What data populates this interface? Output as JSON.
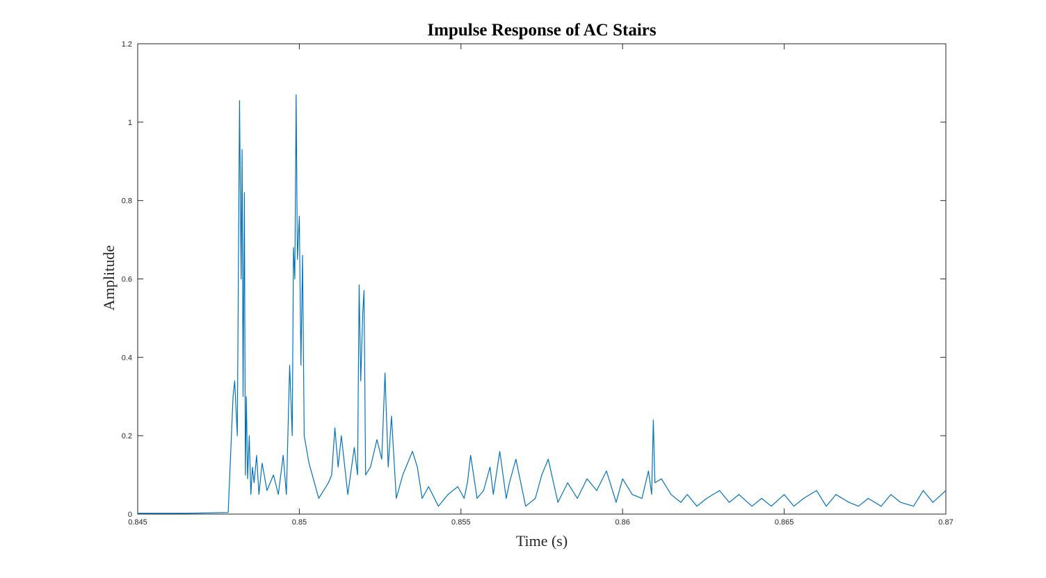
{
  "chart_data": {
    "type": "line",
    "title": "Impulse Response of AC Stairs",
    "xlabel": "Time (s)",
    "ylabel": "Amplitude",
    "xlim": [
      0.845,
      0.87
    ],
    "ylim": [
      0,
      1.2
    ],
    "xticks": [
      0.845,
      0.85,
      0.855,
      0.86,
      0.865,
      0.87
    ],
    "xtick_labels": [
      "0.845",
      "0.85",
      "0.855",
      "0.86",
      "0.865",
      "0.87"
    ],
    "yticks": [
      0,
      0.2,
      0.4,
      0.6,
      0.8,
      1.0,
      1.2
    ],
    "ytick_labels": [
      "0",
      "0.2",
      "0.4",
      "0.6",
      "0.8",
      "1",
      "1.2"
    ],
    "grid": false,
    "line_color": "#0072BD",
    "series": [
      {
        "x": [
          0.845,
          0.8465,
          0.8478,
          0.84795,
          0.848,
          0.84808,
          0.84815,
          0.8482,
          0.84823,
          0.84826,
          0.8483,
          0.84833,
          0.84836,
          0.8484,
          0.84845,
          0.8485,
          0.84855,
          0.8486,
          0.84868,
          0.84875,
          0.84885,
          0.849,
          0.8492,
          0.84935,
          0.8495,
          0.8496,
          0.8497,
          0.84978,
          0.84982,
          0.84986,
          0.8499,
          0.84994,
          0.85,
          0.85005,
          0.8501,
          0.85015,
          0.8503,
          0.8506,
          0.8509,
          0.851,
          0.8511,
          0.8512,
          0.8513,
          0.8515,
          0.8517,
          0.8518,
          0.85185,
          0.8519,
          0.85196,
          0.852,
          0.85205,
          0.8522,
          0.8524,
          0.85255,
          0.85265,
          0.85275,
          0.85285,
          0.853,
          0.8532,
          0.8535,
          0.85365,
          0.8538,
          0.854,
          0.8543,
          0.8546,
          0.8549,
          0.8551,
          0.8552,
          0.8553,
          0.8555,
          0.8557,
          0.8559,
          0.856,
          0.8562,
          0.8564,
          0.8565,
          0.8567,
          0.857,
          0.8573,
          0.8575,
          0.8577,
          0.858,
          0.8583,
          0.8586,
          0.8589,
          0.8592,
          0.8595,
          0.8598,
          0.86,
          0.8603,
          0.8606,
          0.8608,
          0.8609,
          0.86095,
          0.861,
          0.8612,
          0.8615,
          0.8618,
          0.862,
          0.8623,
          0.8626,
          0.863,
          0.8633,
          0.8636,
          0.864,
          0.8643,
          0.8646,
          0.865,
          0.8653,
          0.8656,
          0.866,
          0.8663,
          0.8666,
          0.867,
          0.8673,
          0.8676,
          0.868,
          0.8683,
          0.8686,
          0.869,
          0.8693,
          0.8696,
          0.87
        ],
        "y": [
          0.002,
          0.002,
          0.004,
          0.3,
          0.34,
          0.2,
          1.055,
          0.6,
          0.93,
          0.3,
          0.82,
          0.1,
          0.3,
          0.09,
          0.2,
          0.05,
          0.12,
          0.08,
          0.15,
          0.05,
          0.13,
          0.06,
          0.1,
          0.05,
          0.15,
          0.05,
          0.38,
          0.2,
          0.68,
          0.6,
          1.07,
          0.65,
          0.76,
          0.38,
          0.66,
          0.2,
          0.13,
          0.04,
          0.08,
          0.1,
          0.22,
          0.12,
          0.2,
          0.05,
          0.17,
          0.1,
          0.585,
          0.34,
          0.51,
          0.57,
          0.1,
          0.12,
          0.19,
          0.14,
          0.36,
          0.12,
          0.25,
          0.04,
          0.1,
          0.16,
          0.12,
          0.04,
          0.07,
          0.02,
          0.05,
          0.07,
          0.04,
          0.08,
          0.15,
          0.04,
          0.06,
          0.12,
          0.05,
          0.16,
          0.04,
          0.08,
          0.14,
          0.02,
          0.04,
          0.1,
          0.14,
          0.03,
          0.08,
          0.04,
          0.09,
          0.06,
          0.11,
          0.03,
          0.09,
          0.05,
          0.04,
          0.11,
          0.05,
          0.24,
          0.08,
          0.09,
          0.05,
          0.03,
          0.05,
          0.02,
          0.04,
          0.06,
          0.03,
          0.05,
          0.02,
          0.04,
          0.02,
          0.05,
          0.02,
          0.04,
          0.06,
          0.02,
          0.05,
          0.03,
          0.02,
          0.04,
          0.02,
          0.05,
          0.03,
          0.02,
          0.06,
          0.03,
          0.06
        ]
      }
    ]
  }
}
